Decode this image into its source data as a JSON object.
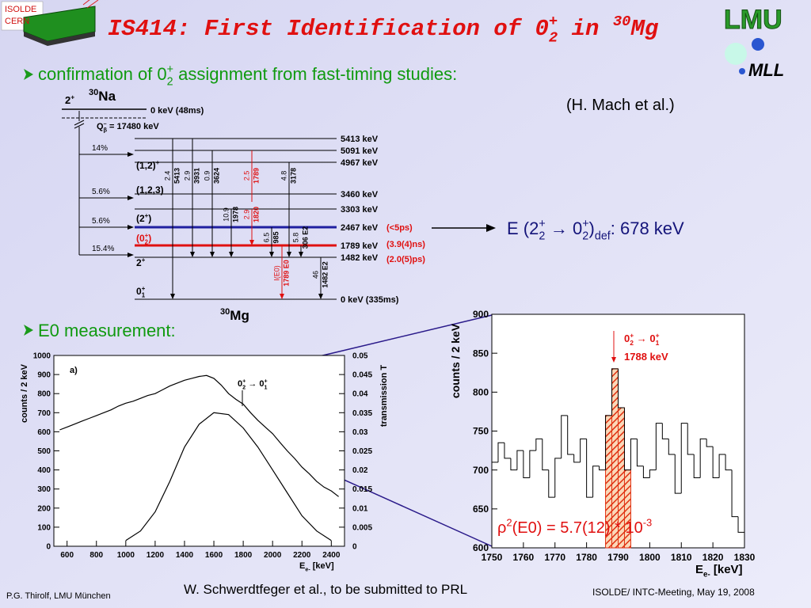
{
  "header": {
    "title": [
      "IS414: First Identification of 0",
      "2",
      "+",
      " in ",
      "30",
      "Mg"
    ],
    "logo_left": [
      "ISOLDE",
      "CERN"
    ],
    "logo_right": [
      "LMU",
      "MLL"
    ]
  },
  "bullets": [
    {
      "text": [
        "confirmation of 0",
        "2",
        "+",
        " assignment from fast-timing studies:"
      ]
    },
    {
      "text": [
        "E0 measurement:"
      ]
    }
  ],
  "reference": "(H. Mach et al.)",
  "level_scheme": {
    "parent": {
      "spin": [
        "2",
        "+"
      ],
      "nucleus": [
        "30",
        "Na"
      ],
      "level": "0 keV (48ms)",
      "q_value": [
        "Q",
        "β",
        "–",
        " = 17480 keV"
      ]
    },
    "branchings": [
      "14%",
      "5.6%",
      "5.6%",
      "15.4%"
    ],
    "levels": [
      "5413 keV",
      "5091 keV",
      "4967 keV",
      "3460 keV",
      "3303 keV",
      "2467 keV",
      "1789 keV",
      "1482 keV",
      "0 keV (335ms)"
    ],
    "spins": [
      [
        "(1,2)",
        "+"
      ],
      [
        "(1,2,3)"
      ],
      [
        "(2",
        "+",
        ")"
      ],
      [
        "(0",
        "+",
        "2",
        ")"
      ],
      [
        "2",
        "+"
      ],
      [
        "0",
        "+",
        "1"
      ]
    ],
    "lifetimes": [
      "(<5ps)",
      "(3.9(4)ns)",
      "(2.0(5)ps)"
    ],
    "transitions": [
      {
        "intensity": "2.4",
        "energy": "5413"
      },
      {
        "intensity": "2.9",
        "energy": "3931"
      },
      {
        "intensity": "0.9",
        "energy": "3624"
      },
      {
        "intensity": "2.5",
        "energy": "1789"
      },
      {
        "intensity": "4.8",
        "energy": "3178"
      },
      {
        "intensity": "10.9",
        "energy": "1978"
      },
      {
        "intensity": "2.9",
        "energy": "1820"
      },
      {
        "intensity": "6.5",
        "energy": "985"
      },
      {
        "intensity": "5.8",
        "energy": "306 E2"
      },
      {
        "intensity": "I(E0)",
        "energy": "1789 E0"
      },
      {
        "intensity": "46",
        "energy": "1482 E2"
      }
    ],
    "daughter": [
      "30",
      "Mg"
    ]
  },
  "result": {
    "formula": [
      "E (2",
      "2",
      "+",
      " → 0",
      "2",
      "+",
      ")",
      "def",
      ": 678 keV"
    ]
  },
  "chart_data": [
    {
      "type": "line",
      "panel_label": "a)",
      "annotation": [
        "0",
        "+",
        "2",
        " → ",
        "0",
        "+",
        "1"
      ],
      "xlabel": [
        "E",
        "e-",
        " [keV]"
      ],
      "ylabel": "counts / 2 keV",
      "y2label": "transmission T",
      "xlim": [
        510,
        2490
      ],
      "xticks": [
        600,
        800,
        1000,
        1200,
        1400,
        1600,
        1800,
        2000,
        2200,
        2400
      ],
      "ylim": [
        0,
        1000
      ],
      "yticks": [
        0,
        100,
        200,
        300,
        400,
        500,
        600,
        700,
        800,
        900,
        1000
      ],
      "y2lim": [
        0,
        0.05
      ],
      "y2ticks": [
        0,
        0.005,
        0.01,
        0.015,
        0.02,
        0.025,
        0.03,
        0.035,
        0.04,
        0.045,
        0.05
      ],
      "series": [
        {
          "color": "#000000",
          "x": [
            550,
            600,
            650,
            700,
            750,
            800,
            850,
            900,
            950,
            1000,
            1050,
            1100,
            1150,
            1200,
            1250,
            1300,
            1350,
            1400,
            1450,
            1500,
            1550,
            1600,
            1650,
            1700,
            1750,
            1800,
            1850,
            1900,
            1950,
            2000,
            2050,
            2100,
            2150,
            2200,
            2250,
            2300,
            2350,
            2400,
            2450
          ],
          "values": [
            610,
            625,
            640,
            655,
            670,
            685,
            700,
            715,
            735,
            750,
            760,
            775,
            790,
            800,
            820,
            840,
            855,
            870,
            880,
            890,
            895,
            880,
            845,
            800,
            770,
            745,
            700,
            660,
            625,
            590,
            545,
            500,
            460,
            415,
            380,
            340,
            310,
            290,
            260
          ]
        },
        {
          "color": "#000000",
          "axis": "y2",
          "x": [
            1000,
            1100,
            1200,
            1300,
            1400,
            1500,
            1600,
            1700,
            1800,
            1900,
            2000,
            2100,
            2200,
            2300,
            2400
          ],
          "values": [
            0.0015,
            0.004,
            0.009,
            0.017,
            0.026,
            0.032,
            0.035,
            0.0345,
            0.031,
            0.026,
            0.02,
            0.014,
            0.008,
            0.004,
            0.0015
          ]
        }
      ]
    },
    {
      "type": "histogram",
      "annotation": [
        "0",
        "+",
        "2",
        " → ",
        "0",
        "+",
        "1"
      ],
      "annotation2": "1788 keV",
      "result": [
        "ρ",
        "2",
        "(E0) = 5.7(12) * 10",
        "-3"
      ],
      "xlabel": [
        "E",
        "e-",
        " [keV]"
      ],
      "ylabel": "counts / 2 keV",
      "xlim": [
        1750,
        1830
      ],
      "xticks": [
        1750,
        1760,
        1770,
        1780,
        1790,
        1800,
        1810,
        1820,
        1830
      ],
      "ylim": [
        600,
        900
      ],
      "yticks": [
        600,
        650,
        700,
        750,
        800,
        850,
        900
      ],
      "bins": [
        1750,
        1752,
        1754,
        1756,
        1758,
        1760,
        1762,
        1764,
        1766,
        1768,
        1770,
        1772,
        1774,
        1776,
        1778,
        1780,
        1782,
        1784,
        1786,
        1788,
        1790,
        1792,
        1794,
        1796,
        1798,
        1800,
        1802,
        1804,
        1806,
        1808,
        1810,
        1812,
        1814,
        1816,
        1818,
        1820,
        1822,
        1824,
        1826,
        1828,
        1830
      ],
      "values": [
        710,
        735,
        715,
        700,
        725,
        690,
        725,
        740,
        700,
        665,
        715,
        770,
        720,
        710,
        740,
        665,
        705,
        700,
        770,
        830,
        780,
        700,
        740,
        705,
        690,
        700,
        760,
        740,
        720,
        670,
        760,
        720,
        690,
        740,
        730,
        690,
        720,
        700,
        640,
        620
      ],
      "highlight_range": [
        1786,
        1794
      ],
      "color": "#000000",
      "highlight_color": "#e03010"
    }
  ],
  "footer": {
    "left": "P.G. Thirolf,  LMU München",
    "center": "W. Schwerdtfeger et al., to be submitted to PRL",
    "right": "ISOLDE/ INTC-Meeting, May 19, 2008"
  }
}
